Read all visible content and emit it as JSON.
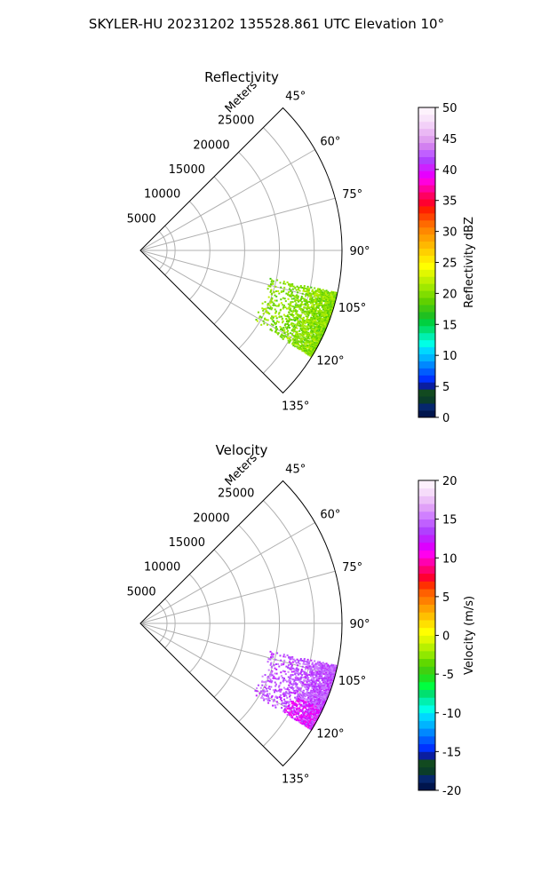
{
  "figure": {
    "suptitle": "SKYLER-HU  20231202  135528.861 UTC Elevation 10°"
  },
  "chart_data": [
    {
      "type": "heatmap",
      "projection": "polar-sector",
      "title": "Reflectivity",
      "radial_label": "Meters",
      "angle_ticks": [
        "45°",
        "60°",
        "75°",
        "90°",
        "105°",
        "120°",
        "135°"
      ],
      "angle_tick_values": [
        45,
        60,
        75,
        90,
        105,
        120,
        135
      ],
      "angle_range_deg": [
        45,
        135
      ],
      "radial_ticks": [
        "5000",
        "10000",
        "15000",
        "20000",
        "25000"
      ],
      "radial_tick_values": [
        5000,
        10000,
        15000,
        20000,
        25000
      ],
      "radial_range_m": [
        0,
        29000
      ],
      "grid": true,
      "colorbar": {
        "label": "Reflectivity dBZ",
        "ticks": [
          "0",
          "5",
          "10",
          "15",
          "20",
          "25",
          "30",
          "35",
          "40",
          "45",
          "50"
        ],
        "range": [
          0,
          50
        ]
      },
      "echo_region": {
        "angle_range_deg": [
          102,
          122
        ],
        "range_m": [
          19000,
          29000
        ],
        "dominant_value": 20
      }
    },
    {
      "type": "heatmap",
      "projection": "polar-sector",
      "title": "Velocity",
      "radial_label": "Meters",
      "angle_ticks": [
        "45°",
        "60°",
        "75°",
        "90°",
        "105°",
        "120°",
        "135°"
      ],
      "angle_tick_values": [
        45,
        60,
        75,
        90,
        105,
        120,
        135
      ],
      "angle_range_deg": [
        45,
        135
      ],
      "radial_ticks": [
        "5000",
        "10000",
        "15000",
        "20000",
        "25000"
      ],
      "radial_tick_values": [
        5000,
        10000,
        15000,
        20000,
        25000
      ],
      "radial_range_m": [
        0,
        29000
      ],
      "grid": true,
      "colorbar": {
        "label": "Velocity (m/s)",
        "ticks": [
          "-20",
          "-15",
          "-10",
          "-5",
          "0",
          "5",
          "10",
          "15",
          "20"
        ],
        "range": [
          -20,
          20
        ]
      },
      "echo_region": {
        "angle_range_deg": [
          102,
          122
        ],
        "range_m": [
          19000,
          29000
        ],
        "dominant_value": 14,
        "near_edge_value": 11
      }
    }
  ],
  "colors": {
    "grid": "#b0b0b0",
    "reflectivity_echo": "#33dd11",
    "velocity_echo": "#cc33ff",
    "velocity_edge": "#ff0088"
  }
}
